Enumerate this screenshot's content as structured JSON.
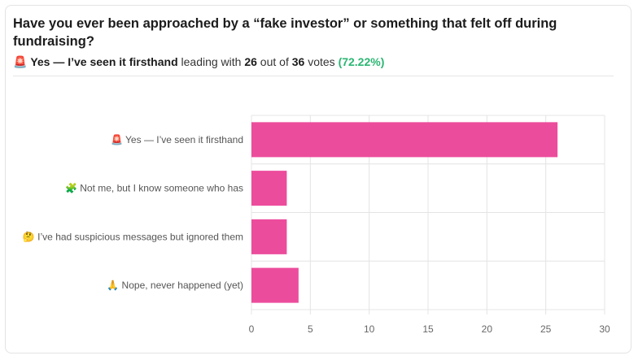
{
  "poll": {
    "question": "Have you ever been approached by a “fake investor” or something that felt off during fundraising?",
    "leader_emoji": "🚨",
    "leader_label": "Yes — I’ve seen it firsthand",
    "leading_with_text": " leading with ",
    "leader_votes": "26",
    "out_of_text": " out of ",
    "total_votes": "36",
    "votes_text": " votes ",
    "leader_percent": "(72.22%)"
  },
  "colors": {
    "bar": "#ec4c9c",
    "grid": "#e4e4e4",
    "percent": "#2bb673"
  },
  "chart_data": {
    "type": "bar",
    "orientation": "horizontal",
    "categories": [
      "🚨 Yes — I’ve seen it firsthand",
      "🧩 Not me, but I know someone who has",
      "🤔 I’ve had suspicious messages but ignored them",
      "🙏 Nope, never happened (yet)"
    ],
    "values": [
      26,
      3,
      3,
      4
    ],
    "xlim": [
      0,
      30
    ],
    "xticks": [
      0,
      5,
      10,
      15,
      20,
      25,
      30
    ],
    "xlabel": "",
    "ylabel": "",
    "grid": true
  }
}
